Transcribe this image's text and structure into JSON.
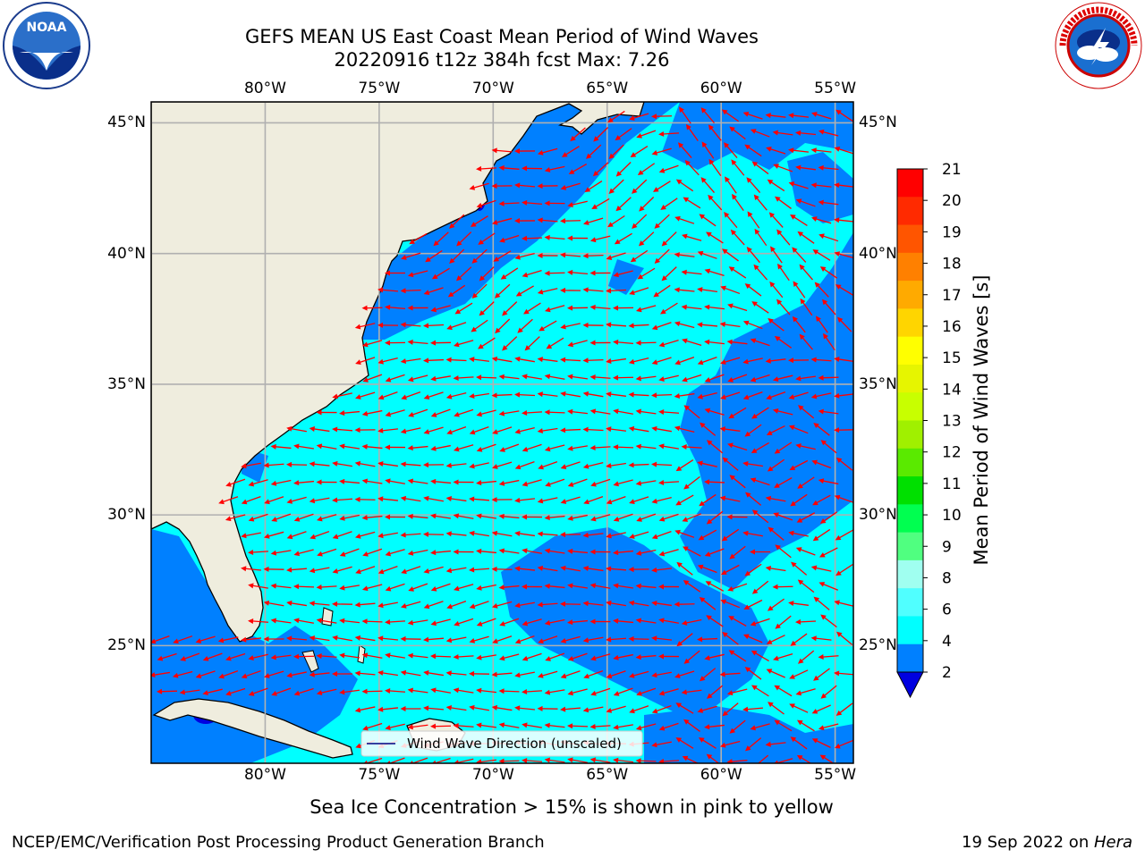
{
  "header": {
    "title_line1": "GEFS MEAN US East Coast Mean Period of Wind Waves",
    "title_line2": "20220916 t12z 384h fcst   Max: 7.26"
  },
  "logos": {
    "left": {
      "name": "noaa-logo",
      "text": "NOAA",
      "ring_text": "NATIONAL OCEANIC AND ATMOSPHERIC ADMINISTRATION · U.S. DEPARTMENT OF COMMERCE"
    },
    "right": {
      "name": "nws-logo",
      "ring_text": "NATIONAL WEATHER SERVICE"
    }
  },
  "map": {
    "lon_ticks": [
      "80°W",
      "75°W",
      "70°W",
      "65°W",
      "60°W",
      "55°W"
    ],
    "lat_ticks": [
      "45°N",
      "40°N",
      "35°N",
      "30°N",
      "25°N"
    ],
    "lon_range": [
      -85,
      -54.2
    ],
    "lat_range": [
      20.5,
      45.8
    ],
    "gridlines": true,
    "land_color": "#efedde",
    "legend_label": "Wind Wave Direction (unscaled)",
    "arrow_color": "#ff0000"
  },
  "colorbar": {
    "label": "Mean Period of Wind Waves [s]",
    "ticks": [
      "21",
      "20",
      "19",
      "18",
      "17",
      "16",
      "15",
      "14",
      "13",
      "12",
      "11",
      "10",
      "9",
      "8",
      "6",
      "4",
      "2"
    ],
    "colors": [
      "#ff0000",
      "#ff2a00",
      "#ff5500",
      "#ff8000",
      "#ffaa00",
      "#ffd500",
      "#ffff00",
      "#e6f500",
      "#c8ff00",
      "#a0f000",
      "#5aea00",
      "#00e000",
      "#00ff50",
      "#50ff80",
      "#a0fff0",
      "#50ffff",
      "#00ffff",
      "#0080ff",
      "#0000e0"
    ]
  },
  "chart_data": {
    "type": "heatmap",
    "title": "GEFS MEAN US East Coast Mean Period of Wind Waves",
    "subtitle": "20220916 t12z 384h fcst   Max: 7.26",
    "variable": "Mean Period of Wind Waves [s]",
    "max": 7.26,
    "color_levels": [
      2,
      4,
      6,
      8,
      9,
      10,
      11,
      12,
      13,
      14,
      15,
      16,
      17,
      18,
      19,
      20,
      21
    ],
    "dominant_values": [
      "2-4",
      "4-6"
    ]
  },
  "footer": {
    "note": "Sea Ice Concentration > 15% is shown in pink to yellow",
    "left": "NCEP/EMC/Verification Post Processing Product Generation Branch",
    "right_date": "19 Sep 2022 on ",
    "right_host": "Hera"
  }
}
